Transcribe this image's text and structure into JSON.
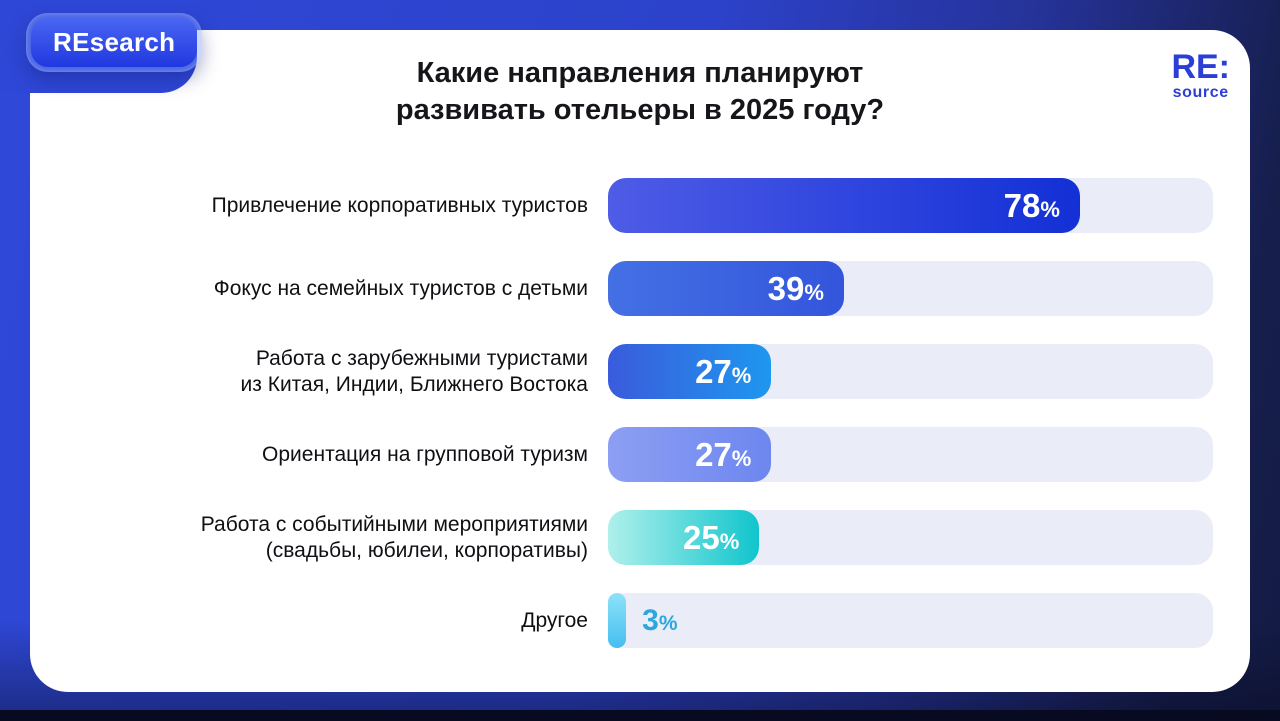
{
  "badge": {
    "label": "REsearch"
  },
  "title": {
    "line1": "Какие направления планируют",
    "line2": "развивать отельеры в 2025 году?"
  },
  "logo": {
    "top": "RE:",
    "bottom": "source"
  },
  "palette": {
    "background_left": "#2F48D8",
    "background_right": "#161E4C",
    "bottom_strip": "#070A20",
    "card": "#FFFFFF",
    "track": "#EAECF8",
    "title_text": "#15151A",
    "label_text": "#101014",
    "logo_blue": "#2B3ED6",
    "badge_fill_top": "#4A66F2",
    "badge_fill_bottom": "#2038E0"
  },
  "chart_data": {
    "type": "bar",
    "orientation": "horizontal",
    "title": "Какие направления планируют развивать отельеры в 2025 году?",
    "unit": "%",
    "xlim": [
      0,
      100
    ],
    "grid": false,
    "legend": false,
    "categories": [
      "Привлечение корпоративных туристов",
      "Фокус на семейных туристов с детьми",
      "Работа с зарубежными туристами из Китая, Индии, Ближнего Востока",
      "Ориентация на групповой туризм",
      "Работа с событийными мероприятиями (свадьбы, юбилеи, корпоративы)",
      "Другое"
    ],
    "values": [
      78,
      39,
      27,
      27,
      25,
      3
    ],
    "track_color": "#EAECF8",
    "bars": [
      {
        "label_line1": "Привлечение корпоративных туристов",
        "label_line2": "",
        "value": 78,
        "number": "78",
        "unit": "%",
        "gradient": [
          "#4E5CE6",
          "#1330D6"
        ],
        "gradient_dir": "90deg",
        "value_position": "inside",
        "value_color": "#FFFFFF"
      },
      {
        "label_line1": "Фокус на семейных туристов с детьми",
        "label_line2": "",
        "value": 39,
        "number": "39",
        "unit": "%",
        "gradient": [
          "#4470E4",
          "#3355DC"
        ],
        "gradient_dir": "90deg",
        "value_position": "inside",
        "value_color": "#FFFFFF"
      },
      {
        "label_line1": "Работа с зарубежными туристами",
        "label_line2": "из Китая, Индии, Ближнего Востока",
        "value": 27,
        "number": "27",
        "unit": "%",
        "gradient": [
          "#3A5BDC",
          "#1E97EF"
        ],
        "gradient_dir": "90deg",
        "value_position": "inside",
        "value_color": "#FFFFFF"
      },
      {
        "label_line1": "Ориентация на групповой туризм",
        "label_line2": "",
        "value": 27,
        "number": "27",
        "unit": "%",
        "gradient": [
          "#8D9FF3",
          "#6D87F0"
        ],
        "gradient_dir": "90deg",
        "value_position": "inside",
        "value_color": "#FFFFFF"
      },
      {
        "label_line1": "Работа с событийными мероприятиями",
        "label_line2": "(свадьбы, юбилеи, корпоративы)",
        "value": 25,
        "number": "25",
        "unit": "%",
        "gradient": [
          "#AFF0EB",
          "#10C5CD"
        ],
        "gradient_dir": "90deg",
        "value_position": "inside",
        "value_color": "#FFFFFF"
      },
      {
        "label_line1": "Другое",
        "label_line2": "",
        "value": 3,
        "number": "3",
        "unit": "%",
        "gradient": [
          "#8EE2F8",
          "#45BEEF"
        ],
        "gradient_dir": "180deg",
        "value_position": "outside",
        "value_color": "#2BA7DC"
      }
    ]
  }
}
